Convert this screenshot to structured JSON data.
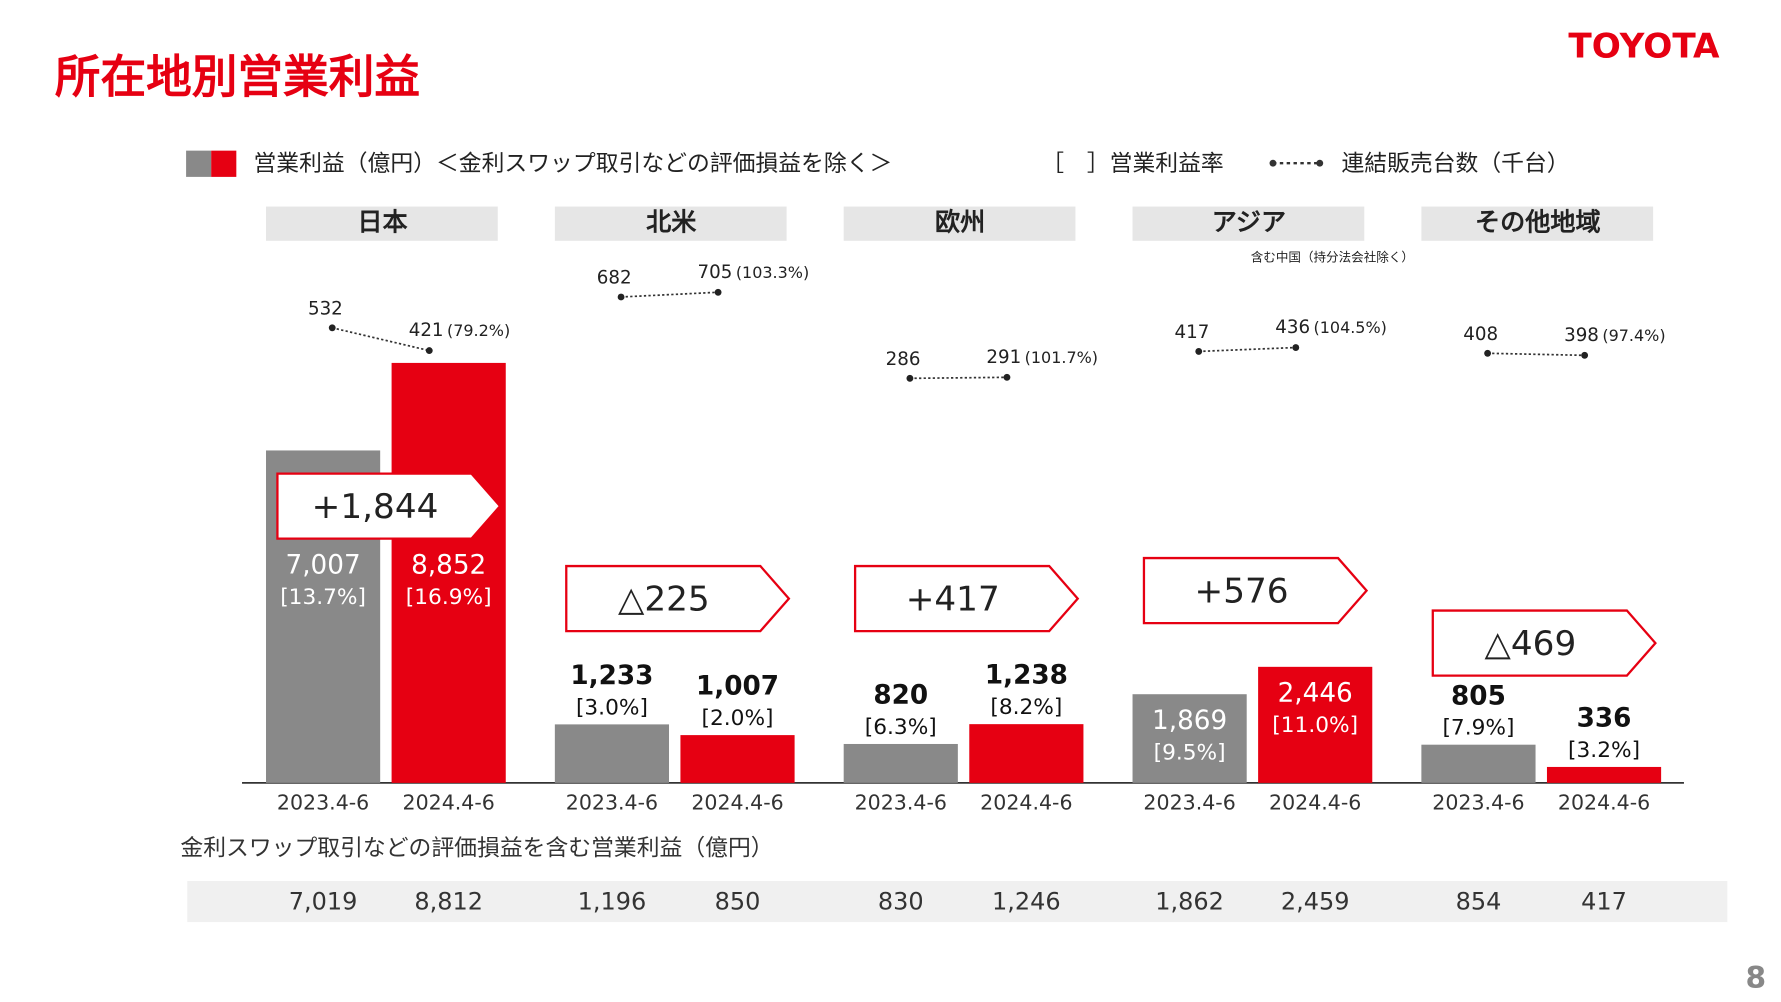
{
  "title": "所在地別営業利益",
  "logo": "TOYOTA",
  "page_number": "8",
  "chart_data": {
    "type": "bar",
    "legend": {
      "profit": "営業利益（億円）＜金利スワップ取引などの評価損益を除く＞",
      "margin": "［　］営業利益率",
      "sales": "連結販売台数（千台）"
    },
    "periods": [
      "2023.4-6",
      "2024.4-6"
    ],
    "colors": [
      "#898989",
      "#e60012"
    ],
    "swap_title": "金利スワップ取引などの評価損益を含む営業利益（億円）",
    "regions": [
      {
        "name": "日本",
        "values": [
          7007,
          8852
        ],
        "value_labels": [
          "7,007",
          "8,852"
        ],
        "margins": [
          13.7,
          16.9
        ],
        "margin_labels": [
          "[13.7%]",
          "[16.9%]"
        ],
        "change": 1844,
        "change_label": "+1,844",
        "sales": [
          532,
          421
        ],
        "sales_ratio": 79.2,
        "sales_ratio_label": "(79.2%)",
        "swap_values": [
          7019,
          8812
        ],
        "swap_labels": [
          "7,019",
          "8,812"
        ]
      },
      {
        "name": "北米",
        "values": [
          1233,
          1007
        ],
        "value_labels": [
          "1,233",
          "1,007"
        ],
        "margins": [
          3.0,
          2.0
        ],
        "margin_labels": [
          "[3.0%]",
          "[2.0%]"
        ],
        "change": -225,
        "change_label": "△225",
        "sales": [
          682,
          705
        ],
        "sales_ratio": 103.3,
        "sales_ratio_label": "(103.3%)",
        "swap_values": [
          1196,
          850
        ],
        "swap_labels": [
          "1,196",
          "850"
        ]
      },
      {
        "name": "欧州",
        "values": [
          820,
          1238
        ],
        "value_labels": [
          "820",
          "1,238"
        ],
        "margins": [
          6.3,
          8.2
        ],
        "margin_labels": [
          "[6.3%]",
          "[8.2%]"
        ],
        "change": 417,
        "change_label": "+417",
        "sales": [
          286,
          291
        ],
        "sales_ratio": 101.7,
        "sales_ratio_label": "(101.7%)",
        "swap_values": [
          830,
          1246
        ],
        "swap_labels": [
          "830",
          "1,246"
        ]
      },
      {
        "name": "アジア",
        "note": "含む中国（持分法会社除く）",
        "values": [
          1869,
          2446
        ],
        "value_labels": [
          "1,869",
          "2,446"
        ],
        "margins": [
          9.5,
          11.0
        ],
        "margin_labels": [
          "[9.5%]",
          "[11.0%]"
        ],
        "change": 576,
        "change_label": "+576",
        "sales": [
          417,
          436
        ],
        "sales_ratio": 104.5,
        "sales_ratio_label": "(104.5%)",
        "swap_values": [
          1862,
          2459
        ],
        "swap_labels": [
          "1,862",
          "2,459"
        ]
      },
      {
        "name": "その他地域",
        "values": [
          805,
          336
        ],
        "value_labels": [
          "805",
          "336"
        ],
        "margins": [
          7.9,
          3.2
        ],
        "margin_labels": [
          "[7.9%]",
          "[3.2%]"
        ],
        "change": -469,
        "change_label": "△469",
        "sales": [
          408,
          398
        ],
        "sales_ratio": 97.4,
        "sales_ratio_label": "(97.4%)",
        "swap_values": [
          854,
          417
        ],
        "swap_labels": [
          "854",
          "417"
        ]
      }
    ]
  }
}
